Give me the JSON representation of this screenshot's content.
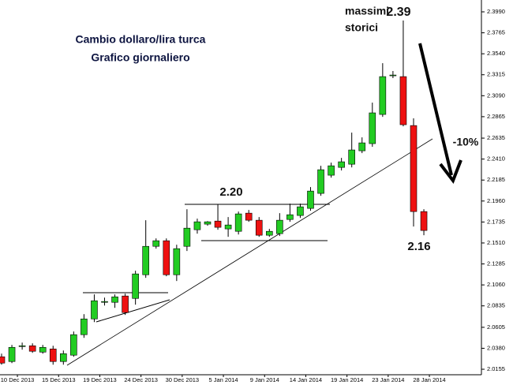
{
  "chart_data": {
    "type": "candlestick",
    "title": "Cambio dollaro/lira turca",
    "subtitle": "Grafico giornaliero",
    "annotations": [
      "massimi",
      "storici",
      "2.39",
      "2.20",
      "2.16",
      "-10%"
    ],
    "categories": [
      null,
      "10 Dec 2013",
      null,
      null,
      null,
      "15 Dec 2013",
      null,
      null,
      null,
      "19 Dec 2013",
      null,
      null,
      null,
      "24 Dec 2013",
      null,
      null,
      null,
      "30 Dec 2013",
      null,
      null,
      null,
      "5 Jan 2014",
      null,
      null,
      null,
      "9 Jan 2014",
      null,
      null,
      null,
      "14 Jan 2014",
      null,
      null,
      null,
      "19 Jan 2014",
      null,
      null,
      null,
      "23 Jan 2014",
      null,
      null,
      null,
      "28 Jan 2014"
    ],
    "open": [
      2.0289,
      2.0238,
      2.0399,
      2.0407,
      2.0339,
      2.0373,
      2.0238,
      2.0306,
      2.0526,
      2.0695,
      2.0873,
      2.0873,
      2.0941,
      2.0915,
      2.1169,
      2.1474,
      2.1534,
      2.1169,
      2.1474,
      2.1652,
      2.1712,
      2.1745,
      2.1661,
      2.1635,
      2.183,
      2.1754,
      2.1593,
      2.161,
      2.1762,
      2.1805,
      2.1881,
      2.2042,
      2.2237,
      2.2321,
      2.2355,
      2.2499,
      2.2576,
      2.2889,
      2.3304,
      2.3295,
      2.277,
      2.1847
    ],
    "high": [
      2.0322,
      2.0416,
      2.0441,
      2.0433,
      2.0416,
      2.0407,
      2.0356,
      2.056,
      2.0746,
      2.0958,
      2.0924,
      2.0958,
      2.0966,
      2.1212,
      2.1754,
      2.1559,
      2.1559,
      2.1491,
      2.1872,
      2.1771,
      2.1745,
      2.1923,
      2.1788,
      2.1847,
      2.1864,
      2.1788,
      2.1661,
      2.183,
      2.1932,
      2.1932,
      2.211,
      2.2338,
      2.2372,
      2.2423,
      2.2694,
      2.2643,
      2.3016,
      2.3439,
      2.3355,
      2.3897,
      2.2847,
      2.1872
    ],
    "low": [
      2.0204,
      2.0221,
      2.0365,
      2.0331,
      2.0322,
      2.0204,
      2.0204,
      2.0289,
      2.0492,
      2.0661,
      2.0839,
      2.0814,
      2.0738,
      2.0848,
      2.1136,
      2.1449,
      2.1153,
      2.1102,
      2.1424,
      2.161,
      2.1695,
      2.1652,
      2.1576,
      2.1601,
      2.1737,
      2.1576,
      2.1576,
      2.1585,
      2.1737,
      2.1779,
      2.1856,
      2.2016,
      2.2211,
      2.2288,
      2.2321,
      2.2474,
      2.2542,
      2.2863,
      2.3279,
      2.2762,
      2.1686,
      2.1593
    ],
    "close": [
      2.0221,
      2.039,
      2.0407,
      2.0348,
      2.039,
      2.0238,
      2.0322,
      2.0526,
      2.0695,
      2.089,
      2.0882,
      2.0932,
      2.0763,
      2.1178,
      2.1474,
      2.1534,
      2.1169,
      2.1449,
      2.1669,
      2.1737,
      2.1737,
      2.1678,
      2.1703,
      2.1822,
      2.1754,
      2.1593,
      2.1635,
      2.1754,
      2.1813,
      2.1898,
      2.2067,
      2.2296,
      2.2338,
      2.2381,
      2.2508,
      2.2584,
      2.2906,
      2.3295,
      2.3312,
      2.2779,
      2.1847,
      2.1644
    ],
    "up_color": "#22cc22",
    "down_color": "#ee1111",
    "ylim": [
      2.0096,
      2.4117
    ],
    "yticks": [
      {
        "value": 2.399,
        "label": "2.3990"
      },
      {
        "value": 2.3765,
        "label": "2.3765"
      },
      {
        "value": 2.354,
        "label": "2.3540"
      },
      {
        "value": 2.3315,
        "label": "2.3315"
      },
      {
        "value": 2.309,
        "label": "2.3090"
      },
      {
        "value": 2.2865,
        "label": "2.2865"
      },
      {
        "value": 2.2635,
        "label": "2.2635"
      },
      {
        "value": 2.241,
        "label": "2.2410"
      },
      {
        "value": 2.2185,
        "label": "2.2185"
      },
      {
        "value": 2.196,
        "label": "2.1960"
      },
      {
        "value": 2.1735,
        "label": "2.1735"
      },
      {
        "value": 2.151,
        "label": "2.1510"
      },
      {
        "value": 2.1285,
        "label": "2.1285"
      },
      {
        "value": 2.106,
        "label": "2.1060"
      },
      {
        "value": 2.0835,
        "label": "2.0835"
      },
      {
        "value": 2.0605,
        "label": "2.0605"
      },
      {
        "value": 2.038,
        "label": "2.0380"
      },
      {
        "value": 2.0155,
        "label": "2.0155"
      }
    ]
  }
}
